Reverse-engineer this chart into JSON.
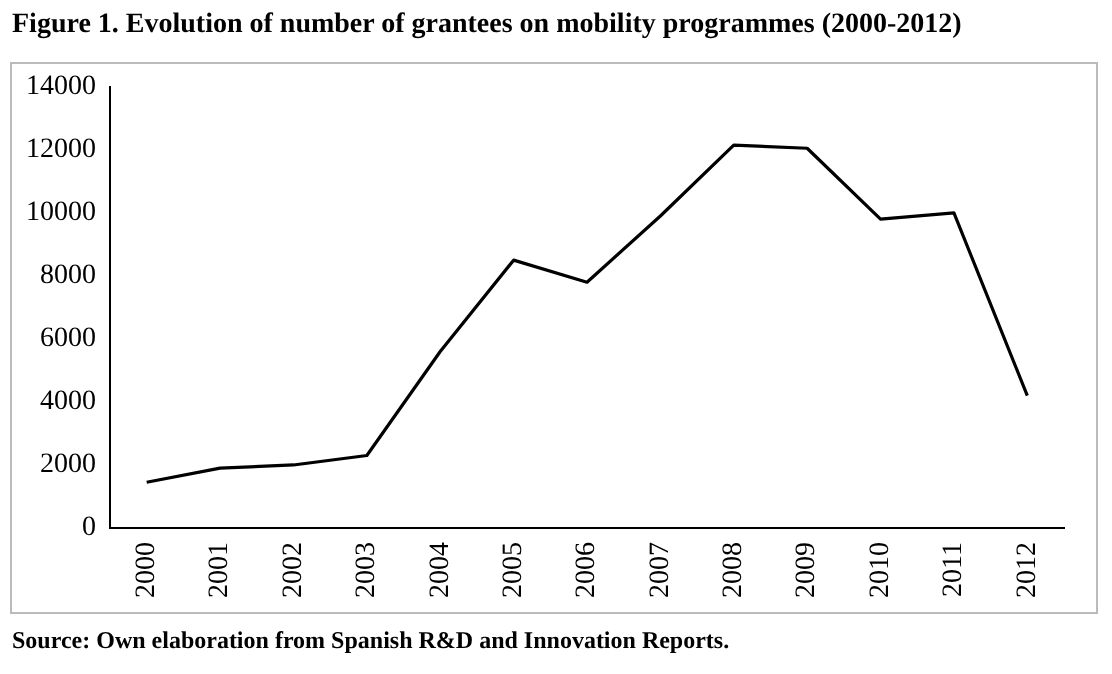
{
  "chart_data": {
    "type": "line",
    "title": "Figure 1. Evolution of number of grantees on mobility programmes (2000-2012)",
    "categories": [
      "2000",
      "2001",
      "2002",
      "2003",
      "2004",
      "2005",
      "2006",
      "2007",
      "2008",
      "2009",
      "2010",
      "2011",
      "2012"
    ],
    "series": [
      {
        "color": "#000000",
        "values": [
          1450,
          1900,
          2000,
          2300,
          5600,
          8500,
          7800,
          9900,
          12150,
          12050,
          9800,
          10000,
          4200
        ]
      }
    ],
    "ylim": [
      0,
      14000
    ],
    "yticks": [
      0,
      2000,
      4000,
      6000,
      8000,
      10000,
      12000,
      14000
    ],
    "grid": false,
    "legend": false,
    "marker": "none",
    "line_style": "solid",
    "annotations": [
      "Source: Own elaboration from Spanish R&D and Innovation Reports."
    ]
  }
}
